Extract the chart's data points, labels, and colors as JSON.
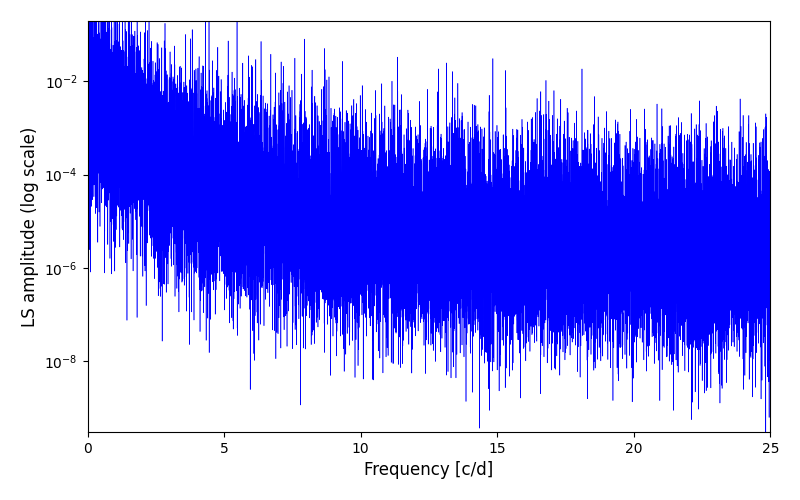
{
  "title": "",
  "xlabel": "Frequency [c/d]",
  "ylabel": "LS amplitude (log scale)",
  "line_color": "#0000ff",
  "xlim": [
    0,
    25
  ],
  "ylim": [
    3e-10,
    0.2
  ],
  "xticks": [
    0,
    5,
    10,
    15,
    20,
    25
  ],
  "yticks": [
    1e-08,
    1e-06,
    0.0001,
    0.01
  ],
  "background_color": "#ffffff",
  "n_points": 20000,
  "seed": 17,
  "freq_max": 25.0,
  "linewidth": 0.4,
  "figsize": [
    8.0,
    5.0
  ],
  "dpi": 100
}
